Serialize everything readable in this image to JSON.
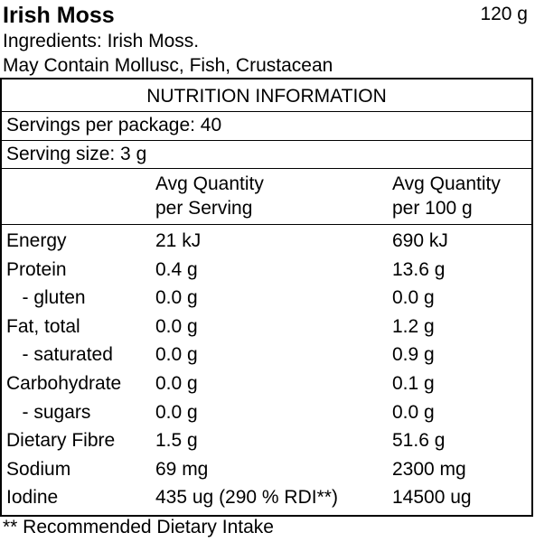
{
  "product": {
    "title": "Irish Moss",
    "net_weight": "120 g",
    "ingredients": "Ingredients: Irish Moss.",
    "allergens": "May Contain Mollusc, Fish, Crustacean"
  },
  "panel": {
    "title": "NUTRITION INFORMATION",
    "servings_per_package": "Servings per package: 40",
    "serving_size": "Serving size: 3 g",
    "headers": {
      "per_serving_line1": "Avg Quantity",
      "per_serving_line2": "per Serving",
      "per_100g_line1": "Avg Quantity",
      "per_100g_line2": "per 100 g"
    },
    "rows": [
      {
        "nutrient": "Energy",
        "per_serving": "21 kJ",
        "per_100g": "690 kJ"
      },
      {
        "nutrient": "Protein",
        "per_serving": "0.4 g",
        "per_100g": "13.6 g"
      },
      {
        "nutrient": "   - gluten",
        "per_serving": "0.0 g",
        "per_100g": "0.0 g"
      },
      {
        "nutrient": "Fat, total",
        "per_serving": "0.0 g",
        "per_100g": "1.2 g"
      },
      {
        "nutrient": "   - saturated",
        "per_serving": "0.0 g",
        "per_100g": "0.9 g"
      },
      {
        "nutrient": "Carbohydrate",
        "per_serving": "0.0 g",
        "per_100g": "0.1 g"
      },
      {
        "nutrient": "   - sugars",
        "per_serving": "0.0 g",
        "per_100g": "0.0 g"
      },
      {
        "nutrient": "Dietary Fibre",
        "per_serving": "1.5 g",
        "per_100g": "51.6 g"
      },
      {
        "nutrient": "Sodium",
        "per_serving": "69 mg",
        "per_100g": "2300 mg"
      },
      {
        "nutrient": "Iodine",
        "per_serving": "435 ug (290 % RDI**)",
        "per_100g": "14500 ug"
      }
    ]
  },
  "footnote": "** Recommended Dietary Intake"
}
